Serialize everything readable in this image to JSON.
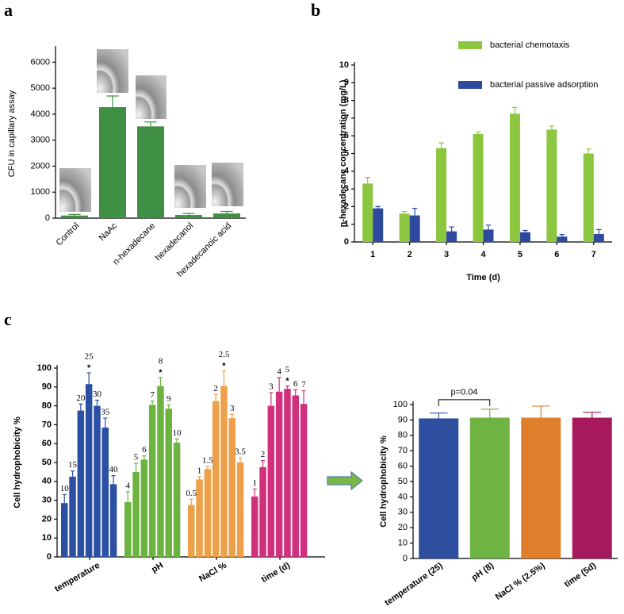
{
  "chart_data": [
    {
      "type": "bar",
      "panel": "a",
      "ylabel": "CFU in capillary assay",
      "categories": [
        "Control",
        "NaAc",
        "n-hexadecane",
        "hexadecanol",
        "hexadecanoic acid"
      ],
      "values": [
        100,
        4270,
        3530,
        120,
        180
      ],
      "errors": [
        40,
        430,
        170,
        60,
        80
      ],
      "color": "#3f8f45",
      "ylim": [
        0,
        6500
      ],
      "yticks": [
        0,
        1000,
        2000,
        3000,
        4000,
        5000,
        6000
      ]
    },
    {
      "type": "grouped_bar",
      "panel": "b",
      "ylabel": "n-hexadecane concentration (mg/L)",
      "xlabel": "Time (d)",
      "categories": [
        "1",
        "2",
        "3",
        "4",
        "5",
        "6",
        "7"
      ],
      "series": [
        {
          "name": "bacterial  chemotaxis",
          "color": "#8cc63f",
          "values": [
            3.3,
            1.6,
            5.3,
            6.1,
            7.25,
            6.35,
            5.0
          ],
          "errors": [
            0.35,
            0.12,
            0.3,
            0.12,
            0.35,
            0.2,
            0.25
          ]
        },
        {
          "name": "bacterial  passive adsorption",
          "color": "#2e4a9e",
          "values": [
            1.9,
            1.5,
            0.6,
            0.7,
            0.55,
            0.3,
            0.45
          ],
          "errors": [
            0.1,
            0.4,
            0.25,
            0.25,
            0.1,
            0.12,
            0.25
          ]
        }
      ],
      "ylim": [
        0,
        10
      ],
      "yticks": [
        0,
        1,
        2,
        3,
        4,
        5,
        6,
        7,
        8,
        9,
        10
      ],
      "legend": "top-right"
    },
    {
      "type": "group_bar",
      "panel": "c",
      "ylabel": "Cell hydrophobicity %",
      "groups": [
        {
          "name": "temperature",
          "color": "#2b4fa3",
          "labels": [
            "10",
            "15",
            "20",
            "25",
            "30",
            "35",
            "40"
          ],
          "values": [
            28.5,
            42.5,
            77.5,
            91.5,
            80,
            68.5,
            38.5
          ],
          "errors": [
            4.5,
            3,
            3.5,
            6,
            3,
            5,
            4.5
          ],
          "star": {
            "text": "*",
            "at": "25"
          }
        },
        {
          "name": "pH",
          "color": "#6cb33f",
          "labels": [
            "4",
            "5",
            "6",
            "7",
            "8",
            "9",
            "10"
          ],
          "values": [
            29,
            45,
            51.5,
            80.5,
            90.5,
            78.5,
            60.5
          ],
          "errors": [
            5.5,
            4.5,
            2,
            2,
            4.5,
            2,
            2
          ],
          "star": {
            "text": "*",
            "at": "8"
          }
        },
        {
          "name": "NaCl %",
          "color": "#eda04a",
          "labels": [
            "0.5",
            "1",
            "1.5",
            "2",
            "2.5",
            "3",
            "3.5"
          ],
          "values": [
            27.5,
            41,
            46.5,
            82.5,
            90.5,
            73.5,
            50
          ],
          "errors": [
            3,
            1.5,
            1.5,
            3.5,
            8,
            2,
            2.5
          ],
          "star": {
            "text": "*",
            "at": "2.5"
          }
        },
        {
          "name": "time (d)",
          "color": "#d1307c",
          "labels": [
            "1",
            "2",
            "3",
            "4",
            "5",
            "6",
            "7"
          ],
          "values": [
            32,
            47.5,
            80,
            87.5,
            89,
            85.5,
            81
          ],
          "errors": [
            4,
            3.5,
            7,
            7.5,
            1.5,
            3,
            7
          ],
          "star": {
            "text": "*",
            "at": "5"
          }
        }
      ],
      "ylim": [
        0,
        100
      ],
      "yticks": [
        0,
        10,
        20,
        30,
        40,
        50,
        60,
        70,
        80,
        90,
        100
      ]
    },
    {
      "type": "bar",
      "ylabel": "Cell hydrophobicity %",
      "categories": [
        "temperature (25)",
        "pH (8)",
        "NaCl % (2.5%)",
        "time (5d)"
      ],
      "values": [
        91,
        91.5,
        91.5,
        91.5
      ],
      "errors": [
        3.5,
        5.5,
        7.5,
        3.5
      ],
      "colors": [
        "#2e4ea0",
        "#6fb443",
        "#e07f2b",
        "#a6195c"
      ],
      "ylim": [
        0,
        100
      ],
      "yticks": [
        0,
        10,
        20,
        30,
        40,
        50,
        60,
        70,
        80,
        90,
        100
      ],
      "annotations": [
        {
          "text": "p=0.04",
          "bars": [
            0,
            1
          ]
        }
      ]
    }
  ]
}
